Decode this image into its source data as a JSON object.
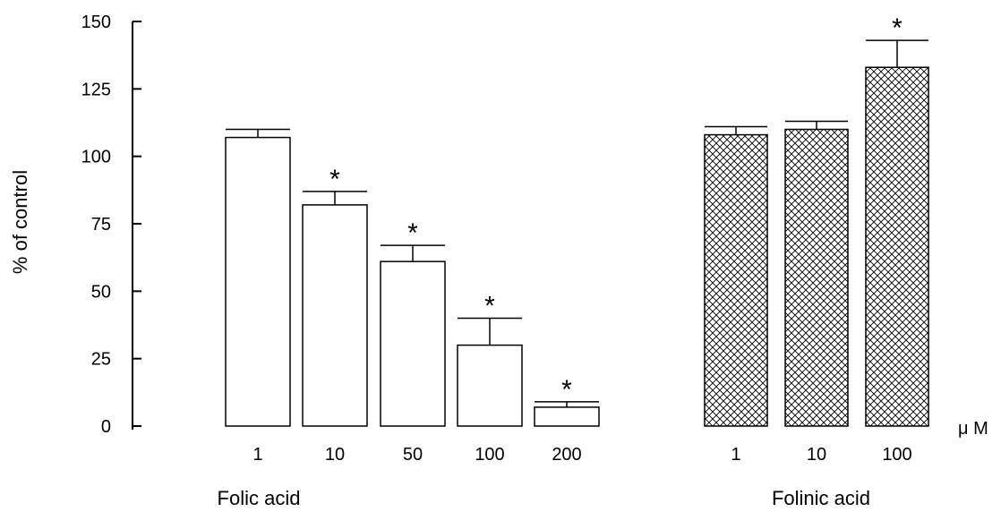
{
  "chart_data": {
    "type": "bar",
    "ylabel": "% of control",
    "ylim": [
      0,
      150
    ],
    "yticks": [
      0,
      25,
      50,
      75,
      100,
      125,
      150
    ],
    "unit_label": "μ M",
    "groups": [
      {
        "name": "Folic acid",
        "fill": "open",
        "categories": [
          "1",
          "10",
          "50",
          "100",
          "200"
        ],
        "values": [
          107,
          82,
          61,
          30,
          7
        ],
        "errors": [
          3,
          5,
          6,
          10,
          2
        ],
        "significant": [
          false,
          true,
          true,
          true,
          true
        ]
      },
      {
        "name": "Folinic acid",
        "fill": "crosshatch",
        "categories": [
          "1",
          "10",
          "100"
        ],
        "values": [
          108,
          110,
          133
        ],
        "errors": [
          3,
          3,
          10
        ],
        "significant": [
          false,
          false,
          true
        ]
      }
    ],
    "significance_marker": "*",
    "grid": false
  }
}
